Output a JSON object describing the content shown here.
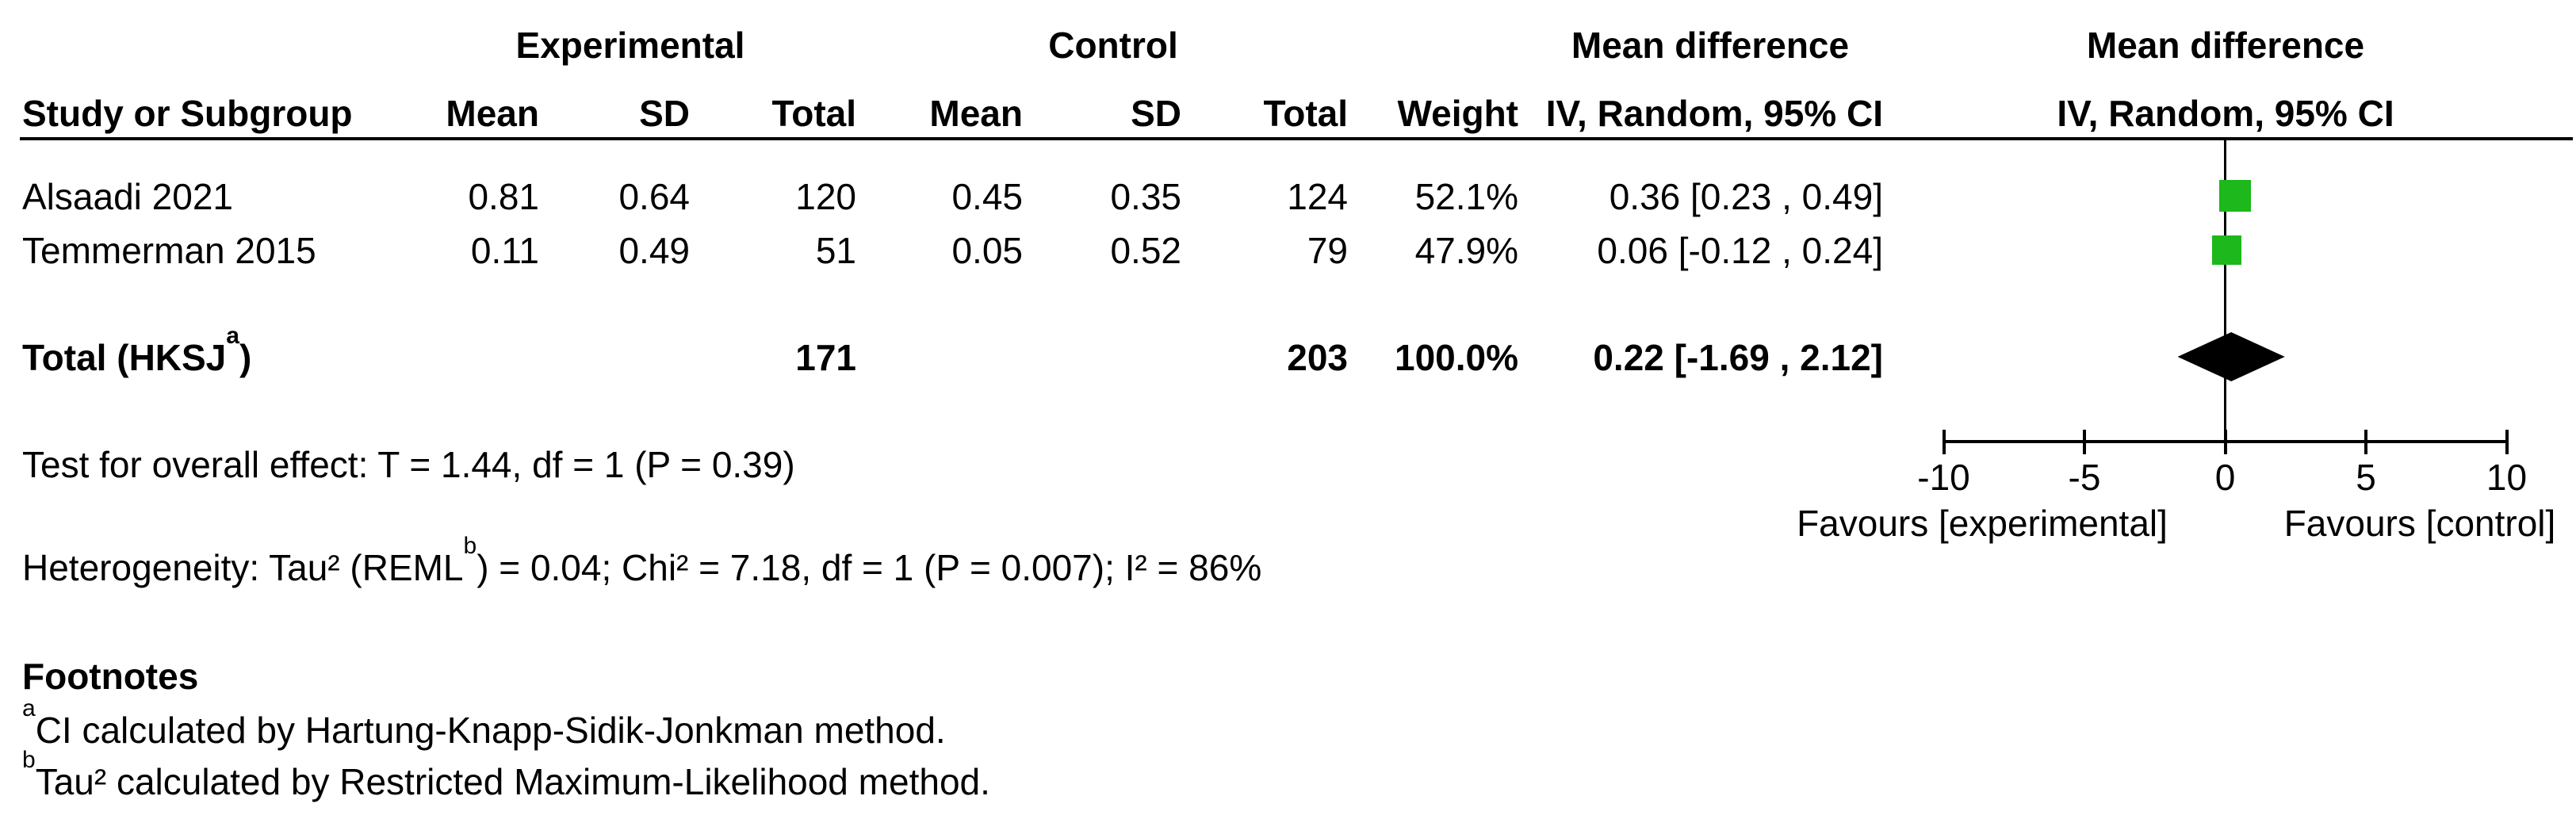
{
  "figure": {
    "groups": {
      "experimental": "Experimental",
      "control": "Control",
      "md_text_col": "Mean difference",
      "md_plot_col": "Mean difference"
    },
    "columns": {
      "study": "Study or Subgroup",
      "mean_exp": "Mean",
      "sd_exp": "SD",
      "total_exp": "Total",
      "mean_ctrl": "Mean",
      "sd_ctrl": "SD",
      "total_ctrl": "Total",
      "weight": "Weight",
      "ci_text": "IV, Random, 95% CI",
      "ci_plot": "IV, Random, 95% CI"
    }
  },
  "chart_data": {
    "type": "forest",
    "effect_measure": "Mean difference",
    "model": "IV, Random, 95% CI",
    "marker_color": "#1cb81c",
    "summary_color": "#000000",
    "studies": [
      {
        "name": "Alsaadi 2021",
        "exp_mean": "0.81",
        "exp_sd": "0.64",
        "exp_total": "120",
        "ctrl_mean": "0.45",
        "ctrl_sd": "0.35",
        "ctrl_total": "124",
        "weight": "52.1%",
        "weight_pct": 52.1,
        "md": 0.36,
        "ci_low": 0.23,
        "ci_high": 0.49,
        "ci_label": "0.36 [0.23 , 0.49]"
      },
      {
        "name": "Temmerman 2015",
        "exp_mean": "0.11",
        "exp_sd": "0.49",
        "exp_total": "51",
        "ctrl_mean": "0.05",
        "ctrl_sd": "0.52",
        "ctrl_total": "79",
        "weight": "47.9%",
        "weight_pct": 47.9,
        "md": 0.06,
        "ci_low": -0.12,
        "ci_high": 0.24,
        "ci_label": "0.06 [-0.12 , 0.24]"
      }
    ],
    "total": {
      "label_pre": "Total (HKSJ",
      "label_sup": "a",
      "label_post": ")",
      "exp_total": "171",
      "ctrl_total": "203",
      "weight": "100.0%",
      "md": 0.22,
      "ci_low": -1.69,
      "ci_high": 2.12,
      "ci_label": "0.22 [-1.69 , 2.12]"
    },
    "axis": {
      "xlim": [
        -10,
        10
      ],
      "ticks": [
        -10,
        -5,
        0,
        5,
        10
      ],
      "tick_labels": [
        "-10",
        "-5",
        "0",
        "5",
        "10"
      ],
      "favours_left": "Favours [experimental]",
      "favours_right": "Favours [control]"
    }
  },
  "stats": {
    "overall_effect": "Test for overall effect: T = 1.44, df = 1 (P = 0.39)",
    "heterogeneity_pre": "Heterogeneity: Tau² (REML",
    "heterogeneity_sup": "b",
    "heterogeneity_post": ") = 0.04; Chi² = 7.18, df = 1 (P = 0.007); I² = 86%"
  },
  "footnotes": {
    "title": "Footnotes",
    "a_sup": "a",
    "a_text": "CI calculated by Hartung-Knapp-Sidik-Jonkman method.",
    "b_sup": "b",
    "b_text": "Tau² calculated by Restricted Maximum-Likelihood method."
  }
}
